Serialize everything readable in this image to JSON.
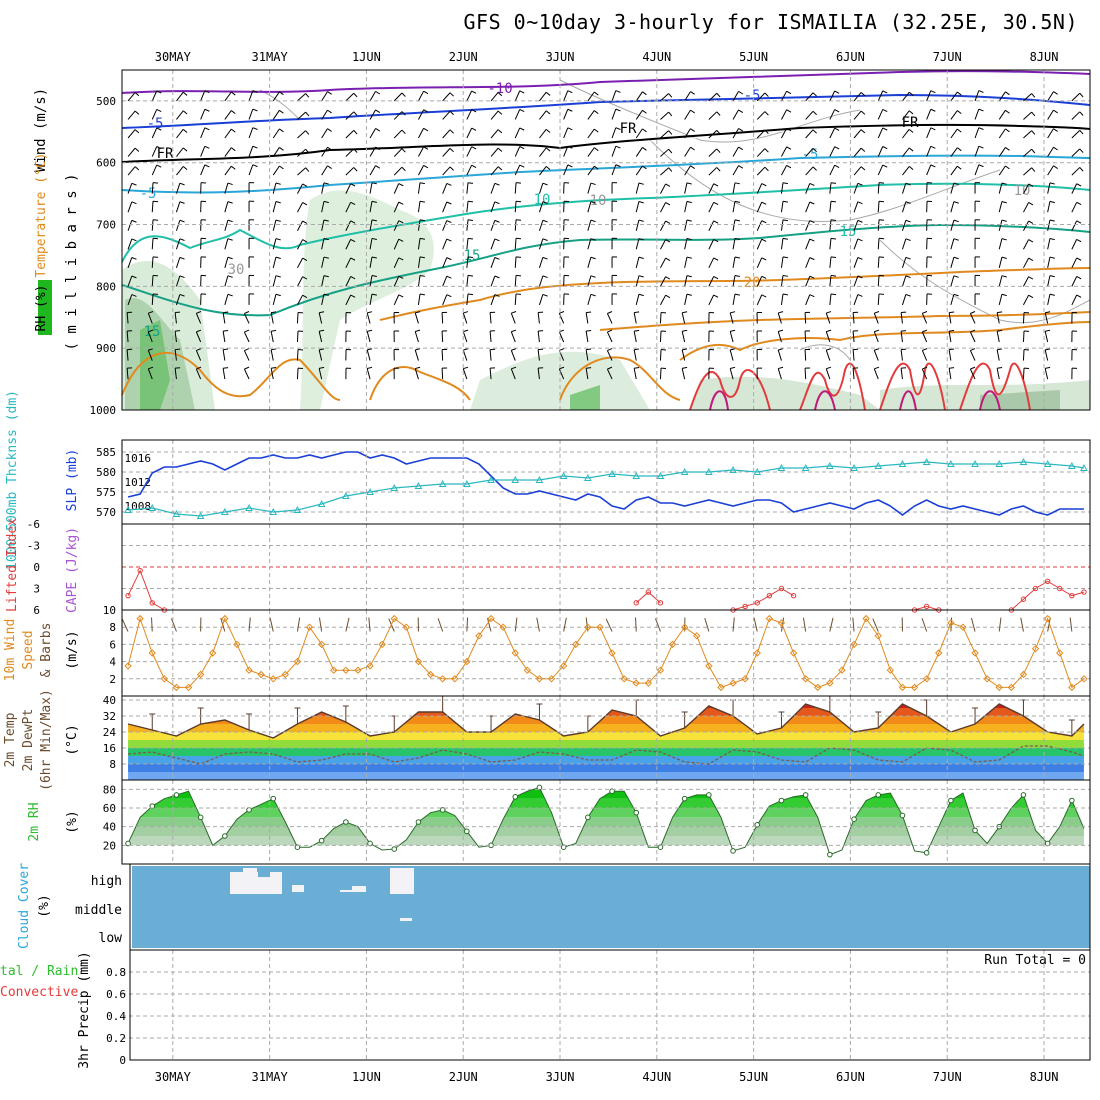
{
  "title": "GFS 0~10day 3-hourly for ISMAILIA (32.25E, 30.5N)",
  "dates": [
    "30MAY",
    "31MAY",
    "1JUN",
    "2JUN",
    "3JUN",
    "4JUN",
    "5JUN",
    "6JUN",
    "7JUN",
    "8JUN"
  ],
  "colors": {
    "purple": "#7a1fb0",
    "blue": "#1a3fd6",
    "black": "#000000",
    "cyan": "#2aa6d8",
    "teal": "#1fbfa8",
    "green": "#16a085",
    "orange": "#e08a1e",
    "red": "#e33b3b",
    "magenta": "#c2187a",
    "cloud": "#6aaed6",
    "rh_green": "#2dbd2d"
  },
  "panels": {
    "upper": {
      "ylabel_wind": "Wind (m/s)",
      "ylabel_temp": "Temperature (°C)",
      "ylabel_rh": "RH (%)",
      "ylabel_mb": "( m i l l i b a r s )",
      "yticks": [
        "500",
        "600",
        "700",
        "800",
        "900",
        "1000"
      ],
      "contour_labels": [
        "-10",
        "-5",
        "-5",
        "FR",
        "FR",
        "FR",
        "-5",
        "-5",
        "10",
        "10",
        "15",
        "15",
        "20",
        "30",
        "15",
        "10"
      ]
    },
    "slp": {
      "ylabel_thick": "1000-500mb Thcknss (dm)",
      "ylabel_slp": "SLP (mb)",
      "yticks_left": [
        "585",
        "580",
        "575",
        "570"
      ],
      "yticks_right": [
        "1016",
        "1012",
        "1008"
      ]
    },
    "cape": {
      "ylabel_li": "Lifted Index",
      "ylabel_cape": "CAPE (J/kg)",
      "yticks": [
        "-6",
        "-3",
        "0",
        "3",
        "6"
      ],
      "ytick_right": "10"
    },
    "wind": {
      "ylabel1": "10m Wind",
      "ylabel2": "Speed",
      "ylabel3": "& Barbs",
      "ylabel_unit": "(m/s)",
      "yticks": [
        "8",
        "6",
        "4",
        "2"
      ]
    },
    "temp": {
      "ylabel1": "2m Temp",
      "ylabel2": "2m DewPt",
      "ylabel3": "(6hr Min/Max)",
      "ylabel_unit": "(°C)",
      "yticks": [
        "40",
        "32",
        "24",
        "16",
        "8"
      ]
    },
    "rh": {
      "ylabel": "2m RH",
      "ylabel_unit": "(%)",
      "yticks": [
        "80",
        "60",
        "40",
        "20"
      ]
    },
    "cloud": {
      "ylabel": "Cloud Cover",
      "ylabel_unit": "(%)",
      "levels": [
        "high",
        "middle",
        "low"
      ]
    },
    "precip": {
      "ylabel_a": "tal / Rain",
      "ylabel_b": "Convective",
      "ylabel_c": "3hr Precip (mm)",
      "yticks": [
        "0.8",
        "0.6",
        "0.4",
        "0.2",
        "0"
      ],
      "run_total": "Run Total = 0"
    }
  },
  "chart_data": [
    {
      "type": "line",
      "name": "SLP (mb)",
      "x": [
        0,
        1,
        2,
        3,
        4,
        5,
        6,
        7,
        8,
        9,
        10,
        11,
        12,
        13,
        14,
        15,
        16,
        17,
        18,
        19,
        20,
        21,
        22,
        23,
        24,
        25,
        26,
        27,
        28,
        29,
        30,
        31,
        32,
        33,
        34,
        35,
        36,
        37,
        38,
        39,
        40,
        41,
        42,
        43,
        44,
        45,
        46,
        47,
        48,
        49,
        50,
        51,
        52,
        53,
        54,
        55,
        56,
        57,
        58,
        59,
        60,
        61,
        62,
        63,
        64,
        65,
        66,
        67,
        68,
        69,
        70,
        71,
        72,
        73,
        74,
        75,
        76,
        77,
        78,
        79
      ],
      "values": [
        1009.5,
        1010,
        1013.5,
        1014.5,
        1014.5,
        1015,
        1015.5,
        1015,
        1014,
        1015,
        1016,
        1016,
        1016.5,
        1016,
        1016,
        1016.5,
        1016,
        1016.5,
        1017,
        1017,
        1016,
        1016.5,
        1016,
        1015,
        1015.5,
        1016,
        1016,
        1016,
        1016,
        1015,
        1013,
        1011,
        1010,
        1010,
        1010.5,
        1010,
        1009.5,
        1009,
        1010,
        1009.5,
        1008,
        1007.5,
        1009,
        1009.5,
        1008.5,
        1008.5,
        1008,
        1008.5,
        1009,
        1008.5,
        1008,
        1008.5,
        1009,
        1009,
        1008.5,
        1007,
        1007.5,
        1008,
        1008.5,
        1008,
        1007.5,
        1008.5,
        1009,
        1008,
        1006.5,
        1008,
        1009,
        1008,
        1007.5,
        1008,
        1007.5,
        1007,
        1006.5,
        1007.5,
        1008,
        1007,
        1006.5,
        1007.5,
        1007.5,
        1007.5
      ],
      "ylim": [
        1005,
        1019
      ]
    },
    {
      "type": "line",
      "name": "1000-500mb Thickness (dm)",
      "x": [
        0,
        2,
        4,
        6,
        8,
        10,
        12,
        14,
        16,
        18,
        20,
        22,
        24,
        26,
        28,
        30,
        32,
        34,
        36,
        38,
        40,
        42,
        44,
        46,
        48,
        50,
        52,
        54,
        56,
        58,
        60,
        62,
        64,
        66,
        68,
        70,
        72,
        74,
        76,
        78,
        79
      ],
      "values": [
        570.5,
        571,
        569.5,
        569,
        570,
        571,
        570,
        570.5,
        572,
        574,
        575,
        576,
        576.5,
        577,
        577,
        578,
        578,
        578,
        579,
        578.5,
        579.5,
        579,
        579,
        580,
        580,
        580.5,
        580,
        581,
        581,
        581.5,
        581,
        581.5,
        582,
        582.5,
        582,
        582,
        582,
        582.5,
        582,
        581.5,
        581
      ],
      "ylim": [
        567,
        588
      ]
    },
    {
      "type": "line",
      "name": "Lifted Index",
      "x": [
        0,
        1,
        2,
        3,
        42,
        43,
        44,
        50,
        51,
        52,
        53,
        54,
        55,
        65,
        66,
        67,
        73,
        74,
        75,
        76,
        77,
        78,
        79
      ],
      "values": [
        4,
        0.5,
        5,
        6,
        5,
        3.5,
        5,
        6,
        5.5,
        5,
        4,
        3,
        4,
        6,
        5.5,
        6,
        6,
        4.5,
        3,
        2,
        3,
        4,
        3.5
      ],
      "ylim": [
        -6,
        6
      ]
    },
    {
      "type": "line",
      "name": "10m Wind Speed (m/s)",
      "x": [
        0,
        1,
        2,
        3,
        4,
        5,
        6,
        7,
        8,
        9,
        10,
        11,
        12,
        13,
        14,
        15,
        16,
        17,
        18,
        19,
        20,
        21,
        22,
        23,
        24,
        25,
        26,
        27,
        28,
        29,
        30,
        31,
        32,
        33,
        34,
        35,
        36,
        37,
        38,
        39,
        40,
        41,
        42,
        43,
        44,
        45,
        46,
        47,
        48,
        49,
        50,
        51,
        52,
        53,
        54,
        55,
        56,
        57,
        58,
        59,
        60,
        61,
        62,
        63,
        64,
        65,
        66,
        67,
        68,
        69,
        70,
        71,
        72,
        73,
        74,
        75,
        76,
        77,
        78,
        79
      ],
      "values": [
        3.5,
        9,
        5,
        2,
        1,
        1,
        2.5,
        5,
        9,
        6,
        3,
        2.5,
        2,
        2.5,
        4,
        8,
        6,
        3,
        3,
        3,
        3.5,
        6,
        9,
        8,
        4,
        2.5,
        2,
        2,
        4,
        7,
        9,
        8,
        5,
        3,
        2,
        2,
        3.5,
        6,
        8,
        8,
        5,
        2,
        1.5,
        1.5,
        3,
        6,
        8,
        7,
        3.5,
        1,
        1.5,
        2,
        5,
        9,
        8.5,
        5,
        2,
        1,
        1.5,
        3,
        6,
        9,
        7,
        3,
        1,
        1,
        2,
        5,
        8.5,
        8,
        5,
        2,
        1,
        1,
        2.5,
        5.5,
        9,
        5,
        1,
        2
      ],
      "ylim": [
        0,
        10
      ]
    },
    {
      "type": "area",
      "name": "2m Temp (°C)",
      "x": [
        0,
        2,
        4,
        6,
        8,
        10,
        12,
        14,
        16,
        18,
        20,
        22,
        24,
        26,
        28,
        30,
        32,
        34,
        36,
        38,
        40,
        42,
        44,
        46,
        48,
        50,
        52,
        54,
        56,
        58,
        60,
        62,
        64,
        66,
        68,
        70,
        72,
        74,
        76,
        78,
        79
      ],
      "values": [
        28,
        25,
        22,
        28,
        30,
        25,
        21,
        28,
        34,
        29,
        22,
        24,
        34,
        34,
        24,
        24,
        33,
        30,
        22,
        24,
        35,
        32,
        22,
        26,
        37,
        32,
        23,
        26,
        38,
        34,
        24,
        26,
        38,
        32,
        24,
        28,
        38,
        32,
        24,
        22,
        28
      ],
      "ylim": [
        0,
        42
      ]
    },
    {
      "type": "line",
      "name": "2m DewPt (°C)",
      "x": [
        0,
        2,
        4,
        6,
        8,
        10,
        12,
        14,
        16,
        18,
        20,
        22,
        24,
        26,
        28,
        30,
        32,
        34,
        36,
        38,
        40,
        42,
        44,
        46,
        48,
        50,
        52,
        54,
        56,
        58,
        60,
        62,
        64,
        66,
        68,
        70,
        72,
        74,
        76,
        78,
        79
      ],
      "values": [
        13,
        14,
        11,
        8,
        13,
        14,
        13,
        9,
        10,
        13,
        13,
        9,
        11,
        15,
        13,
        9,
        10,
        14,
        13,
        10,
        10,
        15,
        14,
        9,
        8,
        15,
        14,
        10,
        9,
        16,
        15,
        10,
        9,
        16,
        15,
        9,
        10,
        17,
        17,
        14,
        12
      ],
      "ylim": [
        0,
        42
      ]
    },
    {
      "type": "area",
      "name": "2m RH (%)",
      "x": [
        0,
        1,
        2,
        3,
        4,
        5,
        6,
        7,
        8,
        9,
        10,
        11,
        12,
        13,
        14,
        15,
        16,
        17,
        18,
        19,
        20,
        21,
        22,
        23,
        24,
        25,
        26,
        27,
        28,
        29,
        30,
        31,
        32,
        33,
        34,
        35,
        36,
        37,
        38,
        39,
        40,
        41,
        42,
        43,
        44,
        45,
        46,
        47,
        48,
        49,
        50,
        51,
        52,
        53,
        54,
        55,
        56,
        57,
        58,
        59,
        60,
        61,
        62,
        63,
        64,
        65,
        66,
        67,
        68,
        69,
        70,
        71,
        72,
        73,
        74,
        75,
        76,
        77,
        78,
        79
      ],
      "values": [
        22,
        50,
        62,
        70,
        74,
        78,
        50,
        20,
        30,
        48,
        58,
        64,
        70,
        45,
        18,
        18,
        25,
        38,
        45,
        40,
        22,
        15,
        16,
        26,
        45,
        55,
        58,
        52,
        35,
        18,
        20,
        48,
        72,
        78,
        82,
        55,
        18,
        22,
        50,
        70,
        78,
        78,
        55,
        18,
        18,
        50,
        70,
        74,
        74,
        50,
        14,
        18,
        42,
        62,
        68,
        72,
        74,
        50,
        10,
        15,
        48,
        68,
        74,
        76,
        52,
        14,
        12,
        40,
        68,
        76,
        36,
        22,
        40,
        60,
        74,
        36,
        22,
        40,
        68,
        38
      ],
      "ylim": [
        0,
        90
      ]
    },
    {
      "type": "bar",
      "name": "Cloud Cover High (%)",
      "x": [
        9,
        10,
        11,
        12,
        13,
        14,
        15,
        18,
        20,
        21,
        22,
        23,
        24
      ],
      "values": [
        60,
        80,
        60,
        80,
        50,
        100,
        0,
        20,
        10,
        15,
        20,
        80,
        80
      ],
      "ylim": [
        0,
        100
      ]
    },
    {
      "type": "bar",
      "name": "3hr Precip (mm)",
      "values": [],
      "ylim": [
        0,
        1
      ]
    }
  ]
}
